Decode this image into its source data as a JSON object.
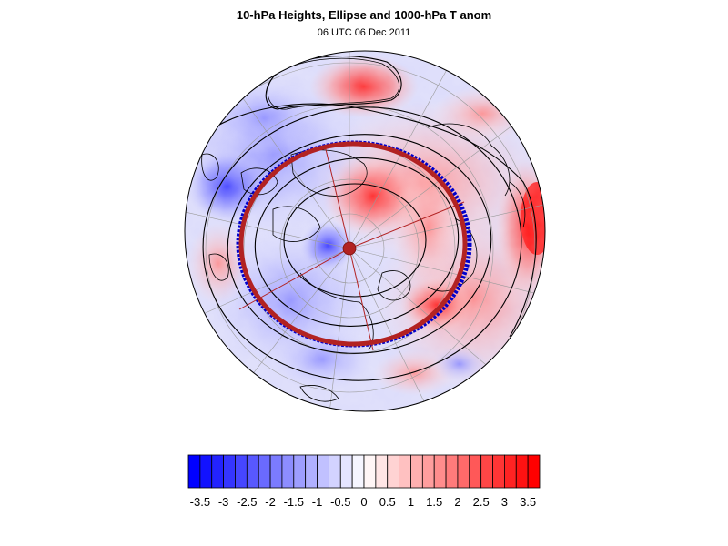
{
  "title": "10-hPa Heights, Ellipse and 1000-hPa T anom",
  "subtitle": "06 UTC 06 Dec 2011",
  "colorbar": {
    "tick_labels": [
      "-3.5",
      "-3",
      "-2.5",
      "-2",
      "-1.5",
      "-1",
      "-0.5",
      "0",
      "0.5",
      "1",
      "1.5",
      "2",
      "2.5",
      "3",
      "3.5"
    ],
    "min": -3.75,
    "max": 3.75,
    "step": 0.25,
    "color_negative": "#0000ff",
    "color_positive": "#ff0000",
    "color_zero": "#ffffff"
  },
  "map": {
    "projection": "north-polar-stereographic",
    "ellipse_fit_color": "#b22222",
    "ellipse_edge_color": "#0000cc",
    "contour_color": "#000000",
    "gridline_color": "#9a9a9a",
    "coastline_color": "#000000",
    "pole_marker_color": "#b22222"
  }
}
